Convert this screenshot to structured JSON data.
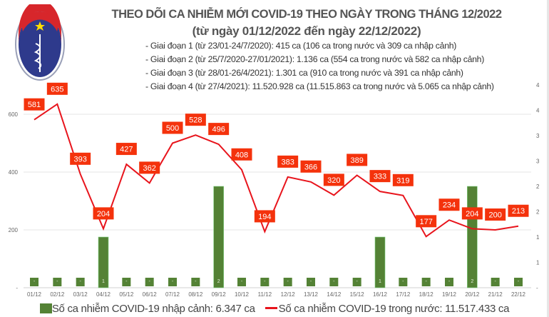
{
  "logo": {
    "text_top": "BỘ Y TẾ",
    "text_bottom": "MINISTRY OF HEALTH",
    "colors": {
      "blue": "#2e3a8c",
      "red": "#d7262b"
    }
  },
  "header": {
    "title": "THEO DÕI CA NHIỄM MỚI COVID-19 THEO NGÀY TRONG THÁNG 12/2022",
    "subtitle": "(từ ngày 01/12/2022 đến ngày 22/12/2022)",
    "notes": [
      "- Giai đoạn 1 (từ 23/01-24/7/2020): 415 ca (106 ca trong nước và 309 ca nhập cảnh)",
      "- Giai đoạn 2 (từ 25/7/2020-27/01/2021): 1.136 ca (554 ca trong nước và 582 ca nhập cảnh)",
      "- Giai đoạn 3 (từ 28/01-26/4/2021): 1.301 ca (910 ca trong nước và 391 ca nhập cảnh)",
      "- Giai đoạn 4 (từ 27/4/2021): 11.520.928 ca (11.515.863 ca trong nước và 5.065 ca nhập cảnh)"
    ]
  },
  "chart_data": {
    "type": "bar+line",
    "categories": [
      "01/12",
      "02/12",
      "03/12",
      "04/12",
      "05/12",
      "06/12",
      "07/12",
      "08/12",
      "09/12",
      "10/12",
      "11/12",
      "12/12",
      "13/12",
      "14/12",
      "15/12",
      "16/12",
      "17/12",
      "18/12",
      "19/12",
      "20/12",
      "21/12",
      "22/12"
    ],
    "series": [
      {
        "name": "Số ca nhiễm COVID-19 nhập cảnh: 6.347 ca",
        "type": "bar",
        "axis": "right",
        "color": "#548235",
        "values": [
          0,
          0,
          0,
          1,
          0,
          0,
          0,
          0,
          2,
          0,
          0,
          0,
          0,
          0,
          0,
          1,
          0,
          0,
          0,
          2,
          0,
          0
        ],
        "labels": [
          "-",
          "-",
          "-",
          "1",
          "-",
          "-",
          "-",
          "-",
          "2",
          "-",
          "-",
          "-",
          "-",
          "-",
          "-",
          "1",
          "-",
          "-",
          "-",
          "2",
          "-",
          "-"
        ]
      },
      {
        "name": "Số ca nhiễm COVID-19 trong nước: 11.517.433 ca",
        "type": "line",
        "axis": "left",
        "color": "#e8141c",
        "label_bg": "#f4320c",
        "values": [
          581,
          635,
          393,
          204,
          427,
          362,
          500,
          528,
          496,
          408,
          194,
          383,
          366,
          320,
          389,
          333,
          319,
          177,
          234,
          204,
          200,
          213
        ]
      }
    ],
    "left_axis": {
      "ylim": [
        0,
        800
      ],
      "ticks": [
        "200",
        "400",
        "600"
      ],
      "zero_label": "-"
    },
    "right_axis": {
      "ylim": [
        0,
        4
      ],
      "tick_labels": [
        "-",
        "1",
        "1",
        "2",
        "2",
        "3",
        "3",
        "4",
        "4"
      ]
    },
    "grid": true,
    "legend": "bottom"
  }
}
